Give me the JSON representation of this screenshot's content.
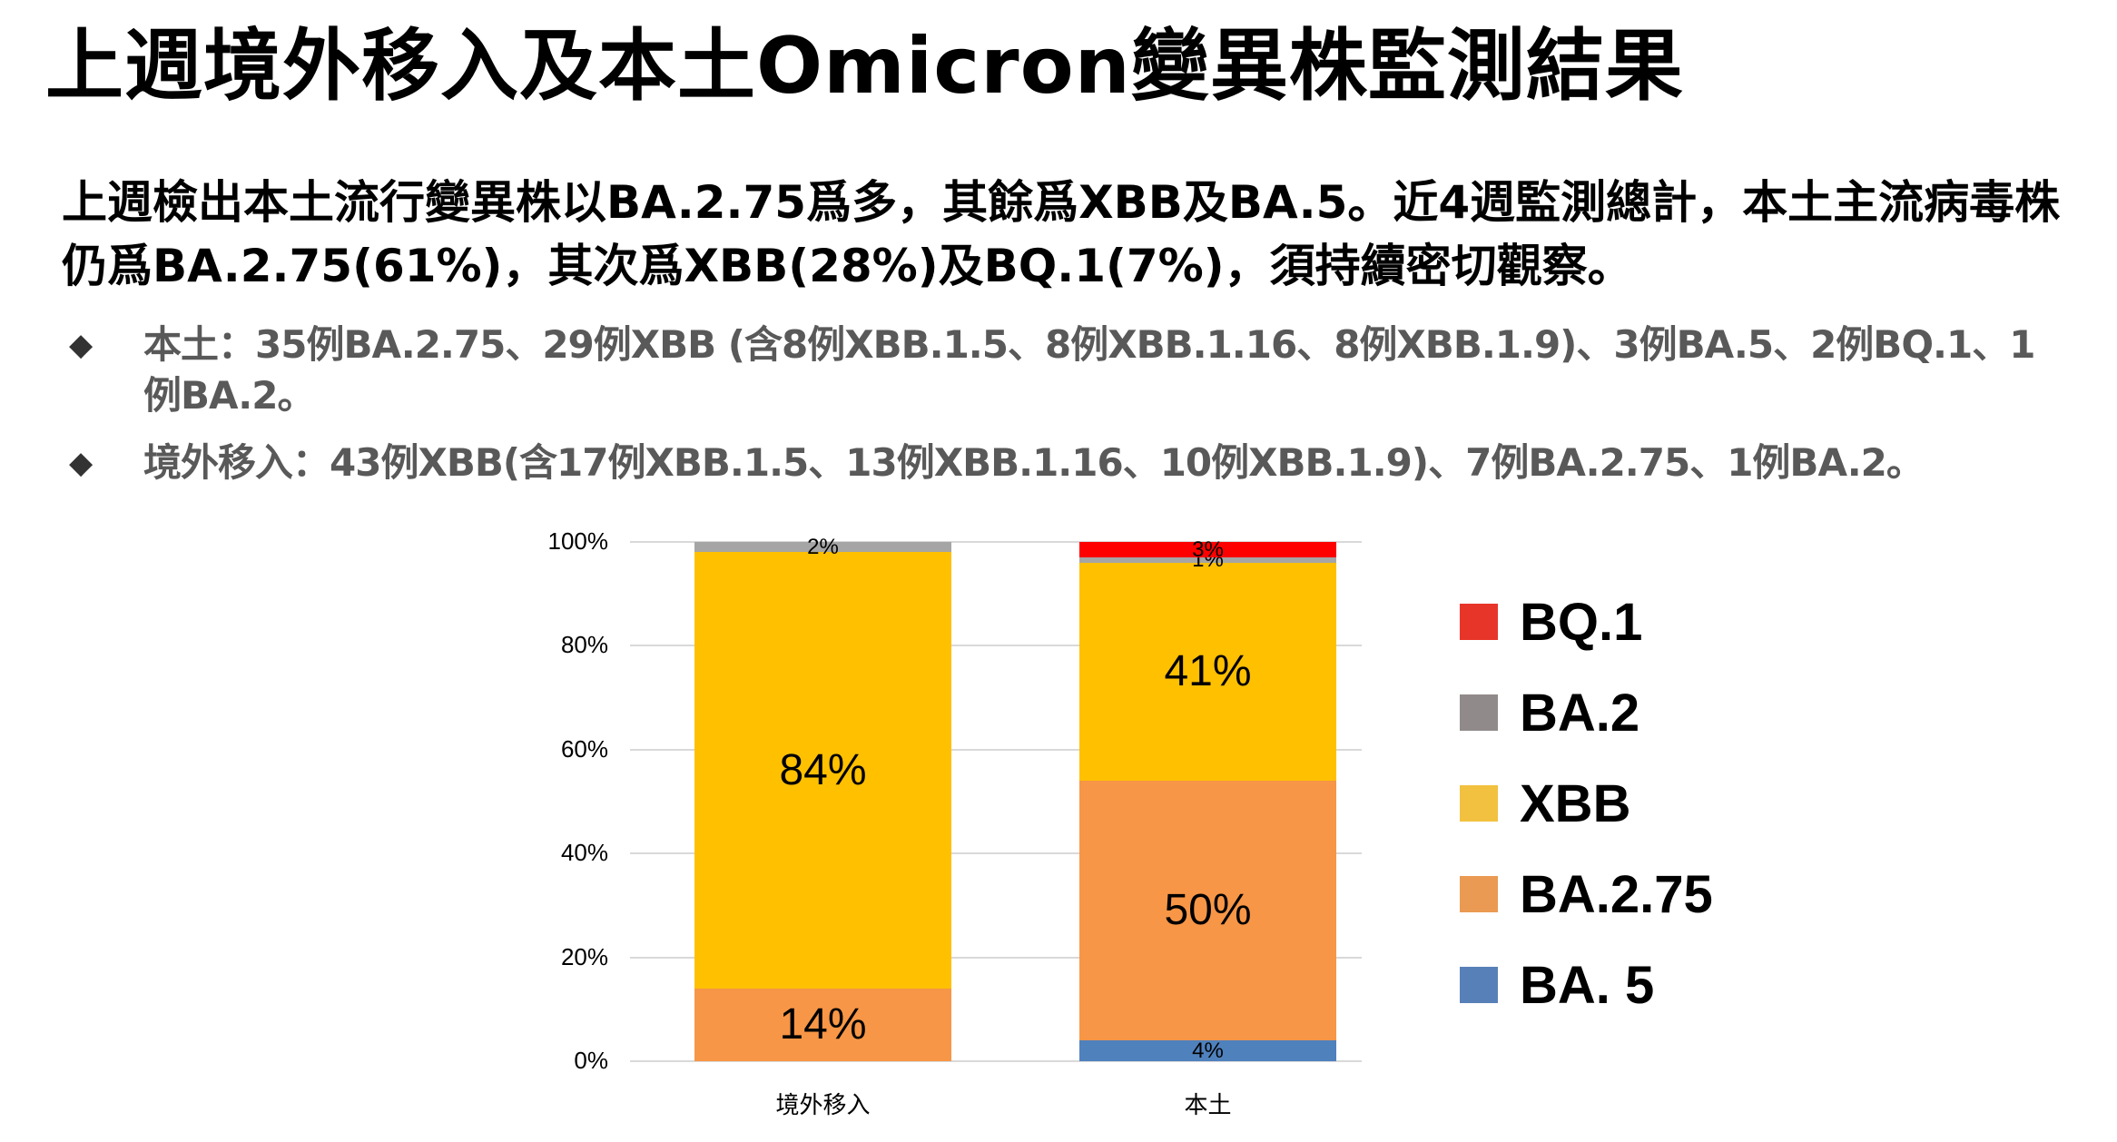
{
  "slide": {
    "title": "上週境外移入及本土Omicron變異株監測結果",
    "summary": "上週檢出本土流行變異株以BA.2.75爲多，其餘爲XBB及BA.5。近4週監測總計，本土主流病毒株仍爲BA.2.75(61%)，其次爲XBB(28%)及BQ.1(7%)，須持續密切觀察。",
    "bullets": [
      {
        "icon": "◆",
        "text": "本土：35例BA.2.75、29例XBB (含8例XBB.1.5、8例XBB.1.16、8例XBB.1.9)、3例BA.5、2例BQ.1、1例BA.2。"
      },
      {
        "icon": "◆",
        "text": "境外移入：43例XBB(含17例XBB.1.5、13例XBB.1.16、10例XBB.1.9)、7例BA.2.75、1例BA.2。"
      }
    ]
  },
  "chart_data": {
    "type": "bar",
    "stacked": true,
    "percent_stacked": true,
    "title": "",
    "xlabel": "",
    "ylabel": "",
    "ylim": [
      0,
      100
    ],
    "yticks": [
      "0%",
      "20%",
      "40%",
      "60%",
      "80%",
      "100%"
    ],
    "grid": true,
    "legend_position": "right",
    "categories": [
      "境外移入",
      "本土"
    ],
    "series": [
      {
        "name": "BA. 5",
        "color": "#4f81bd",
        "values": [
          0,
          4
        ],
        "heights": [
          0,
          4
        ],
        "labels": [
          "",
          "4%"
        ]
      },
      {
        "name": "BA.2.75",
        "color": "#f79646",
        "values": [
          14,
          50
        ],
        "heights": [
          14,
          50
        ],
        "labels": [
          "14%",
          "50%"
        ]
      },
      {
        "name": "XBB",
        "color": "#ffc000",
        "values": [
          84,
          41
        ],
        "heights": [
          84,
          42
        ],
        "labels": [
          "84%",
          "41%"
        ]
      },
      {
        "name": "BA.2",
        "color": "#a5a5a5",
        "values": [
          2,
          1
        ],
        "heights": [
          2,
          1
        ],
        "labels": [
          "2%",
          "1%"
        ]
      },
      {
        "name": "BQ.1",
        "color": "#ff0000",
        "values": [
          0,
          3
        ],
        "heights": [
          0,
          3
        ],
        "labels": [
          "",
          "3%"
        ]
      }
    ],
    "legend": [
      {
        "name": "BQ.1",
        "color": "#e8352a"
      },
      {
        "name": "BA.2",
        "color": "#918a8b"
      },
      {
        "name": "XBB",
        "color": "#f2c13f"
      },
      {
        "name": "BA.2.75",
        "color": "#ea9a52"
      },
      {
        "name": "BA. 5",
        "color": "#5880b8"
      }
    ]
  }
}
